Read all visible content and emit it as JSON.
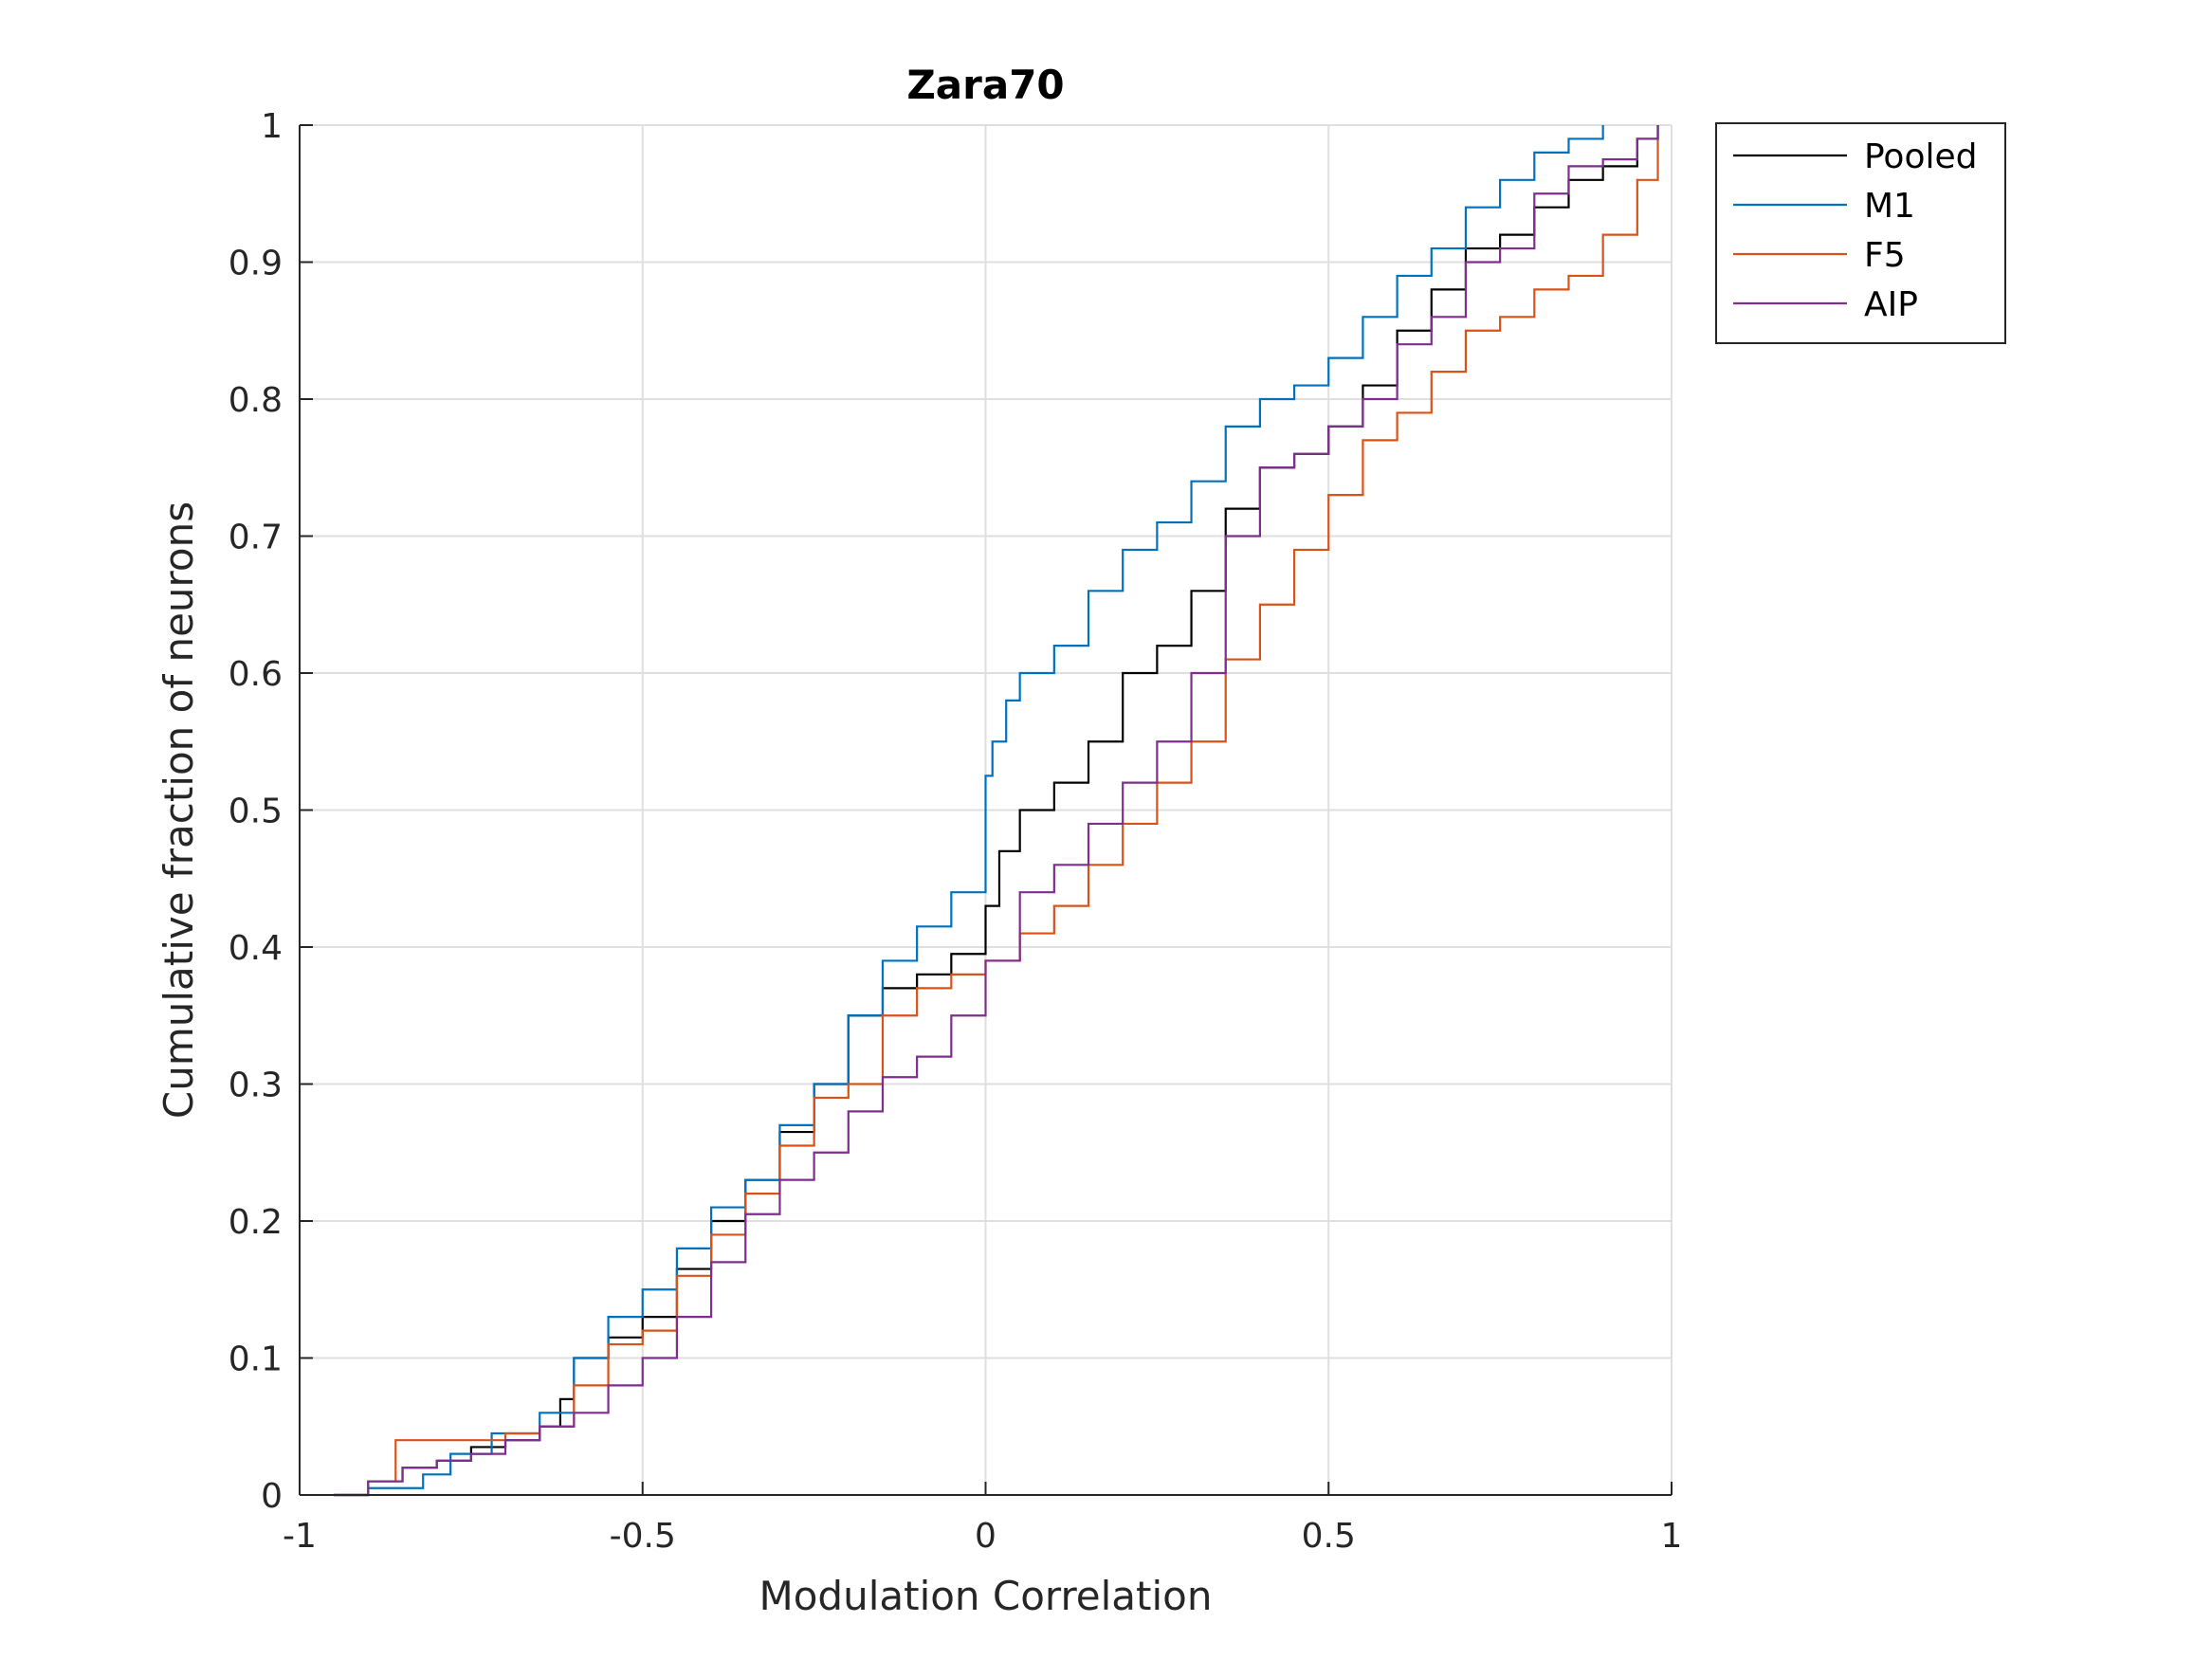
{
  "chart_data": {
    "type": "line",
    "style": "stairs",
    "title": "Zara70",
    "xlabel": "Modulation Correlation",
    "ylabel": "Cumulative fraction of neurons",
    "xlim": [
      -1,
      1
    ],
    "ylim": [
      0,
      1
    ],
    "xticks": [
      -1,
      -0.5,
      0,
      0.5,
      1
    ],
    "xtick_labels": [
      "-1",
      "-0.5",
      "0",
      "0.5",
      "1"
    ],
    "yticks": [
      0,
      0.1,
      0.2,
      0.3,
      0.4,
      0.5,
      0.6,
      0.7,
      0.8,
      0.9,
      1
    ],
    "ytick_labels": [
      "0",
      "0.1",
      "0.2",
      "0.3",
      "0.4",
      "0.5",
      "0.6",
      "0.7",
      "0.8",
      "0.9",
      "1"
    ],
    "grid": true,
    "legend_position": "outside-top-right",
    "series": [
      {
        "name": "Pooled",
        "color": "#000000",
        "x": [
          -0.95,
          -0.9,
          -0.85,
          -0.8,
          -0.75,
          -0.7,
          -0.65,
          -0.62,
          -0.6,
          -0.55,
          -0.5,
          -0.45,
          -0.4,
          -0.35,
          -0.3,
          -0.25,
          -0.2,
          -0.15,
          -0.1,
          -0.05,
          0.0,
          0.02,
          0.05,
          0.1,
          0.15,
          0.2,
          0.25,
          0.3,
          0.35,
          0.4,
          0.45,
          0.5,
          0.55,
          0.6,
          0.65,
          0.7,
          0.75,
          0.8,
          0.85,
          0.9,
          0.95,
          0.98
        ],
        "y": [
          0.0,
          0.01,
          0.02,
          0.025,
          0.035,
          0.04,
          0.05,
          0.07,
          0.1,
          0.115,
          0.13,
          0.165,
          0.2,
          0.23,
          0.265,
          0.3,
          0.35,
          0.37,
          0.38,
          0.395,
          0.43,
          0.47,
          0.5,
          0.52,
          0.55,
          0.6,
          0.62,
          0.66,
          0.72,
          0.75,
          0.76,
          0.78,
          0.81,
          0.85,
          0.88,
          0.91,
          0.92,
          0.94,
          0.96,
          0.97,
          0.99,
          1.0
        ]
      },
      {
        "name": "M1",
        "color": "#0072BD",
        "x": [
          -0.95,
          -0.9,
          -0.82,
          -0.78,
          -0.72,
          -0.65,
          -0.6,
          -0.55,
          -0.5,
          -0.45,
          -0.4,
          -0.35,
          -0.3,
          -0.25,
          -0.2,
          -0.15,
          -0.1,
          -0.05,
          0.0,
          0.01,
          0.03,
          0.05,
          0.1,
          0.15,
          0.2,
          0.25,
          0.3,
          0.35,
          0.4,
          0.45,
          0.5,
          0.55,
          0.6,
          0.65,
          0.7,
          0.75,
          0.8,
          0.85,
          0.9
        ],
        "y": [
          0.0,
          0.005,
          0.015,
          0.03,
          0.045,
          0.06,
          0.1,
          0.13,
          0.15,
          0.18,
          0.21,
          0.23,
          0.27,
          0.3,
          0.35,
          0.39,
          0.415,
          0.44,
          0.525,
          0.55,
          0.58,
          0.6,
          0.62,
          0.66,
          0.69,
          0.71,
          0.74,
          0.78,
          0.8,
          0.81,
          0.83,
          0.86,
          0.89,
          0.91,
          0.94,
          0.96,
          0.98,
          0.99,
          1.0
        ]
      },
      {
        "name": "F5",
        "color": "#D95319",
        "x": [
          -0.95,
          -0.9,
          -0.86,
          -0.75,
          -0.7,
          -0.65,
          -0.6,
          -0.55,
          -0.5,
          -0.45,
          -0.4,
          -0.35,
          -0.3,
          -0.25,
          -0.2,
          -0.15,
          -0.1,
          -0.05,
          0.0,
          0.05,
          0.1,
          0.15,
          0.2,
          0.25,
          0.3,
          0.35,
          0.4,
          0.45,
          0.5,
          0.55,
          0.6,
          0.65,
          0.7,
          0.75,
          0.8,
          0.85,
          0.9,
          0.95,
          0.98
        ],
        "y": [
          0.0,
          0.01,
          0.04,
          0.04,
          0.045,
          0.05,
          0.08,
          0.11,
          0.12,
          0.16,
          0.19,
          0.22,
          0.255,
          0.29,
          0.3,
          0.35,
          0.37,
          0.38,
          0.39,
          0.41,
          0.43,
          0.46,
          0.49,
          0.52,
          0.55,
          0.61,
          0.65,
          0.69,
          0.73,
          0.77,
          0.79,
          0.82,
          0.85,
          0.86,
          0.88,
          0.89,
          0.92,
          0.96,
          1.0
        ]
      },
      {
        "name": "AIP",
        "color": "#7E2F8E",
        "x": [
          -0.95,
          -0.9,
          -0.85,
          -0.8,
          -0.75,
          -0.7,
          -0.65,
          -0.6,
          -0.55,
          -0.5,
          -0.45,
          -0.4,
          -0.35,
          -0.3,
          -0.25,
          -0.2,
          -0.15,
          -0.1,
          -0.05,
          0.0,
          0.05,
          0.1,
          0.15,
          0.2,
          0.25,
          0.3,
          0.35,
          0.4,
          0.45,
          0.5,
          0.55,
          0.6,
          0.65,
          0.7,
          0.75,
          0.8,
          0.85,
          0.9,
          0.95,
          0.98
        ],
        "y": [
          0.0,
          0.01,
          0.02,
          0.025,
          0.03,
          0.04,
          0.05,
          0.06,
          0.08,
          0.1,
          0.13,
          0.17,
          0.205,
          0.23,
          0.25,
          0.28,
          0.305,
          0.32,
          0.35,
          0.39,
          0.44,
          0.46,
          0.49,
          0.52,
          0.55,
          0.6,
          0.7,
          0.75,
          0.76,
          0.78,
          0.8,
          0.84,
          0.86,
          0.9,
          0.91,
          0.95,
          0.97,
          0.975,
          0.99,
          1.0
        ]
      }
    ]
  }
}
